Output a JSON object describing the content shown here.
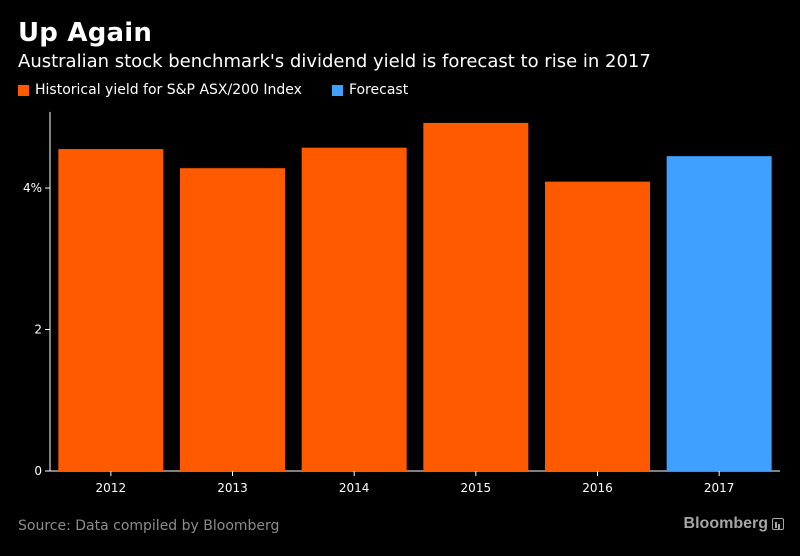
{
  "title": "Up Again",
  "subtitle": "Australian stock benchmark's dividend yield is forecast to rise in 2017",
  "legend": [
    {
      "label": "Historical yield for S&P ASX/200 Index",
      "color": "#ff5a00"
    },
    {
      "label": "Forecast",
      "color": "#3fa0ff"
    }
  ],
  "source": "Source: Data compiled by Bloomberg",
  "brand": "Bloomberg",
  "chart_data": {
    "type": "bar",
    "categories": [
      "2012",
      "2013",
      "2014",
      "2015",
      "2016",
      "2017"
    ],
    "values": [
      4.55,
      4.28,
      4.57,
      4.92,
      4.09,
      4.45
    ],
    "bar_colors": [
      "#ff5a00",
      "#ff5a00",
      "#ff5a00",
      "#ff5a00",
      "#ff5a00",
      "#3fa0ff"
    ],
    "y_ticks": [
      {
        "value": 0,
        "label": "0"
      },
      {
        "value": 2,
        "label": "2"
      },
      {
        "value": 4,
        "label": "4%"
      }
    ],
    "ylim": [
      0,
      5.5
    ],
    "grid": false,
    "legend_position": "top-left"
  }
}
